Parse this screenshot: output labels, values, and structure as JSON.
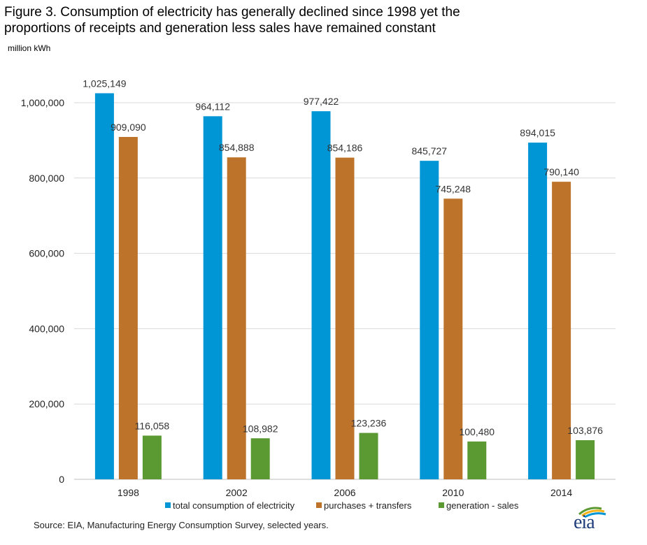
{
  "title_line1": "Figure 3. Consumption of electricity has generally declined since 1998 yet the",
  "title_line2": "proportions of receipts and generation less sales have remained constant",
  "units": "million kWh",
  "source": "Source: EIA, Manufacturing Energy Consumption Survey, selected years.",
  "logo_text": "eia",
  "chart_data": {
    "type": "bar",
    "categories": [
      "1998",
      "2002",
      "2006",
      "2010",
      "2014"
    ],
    "series": [
      {
        "name": "total consumption of electricity",
        "color": "#0096d6",
        "values": [
          1025149,
          964112,
          977422,
          845727,
          894015
        ],
        "labels": [
          "1,025,149",
          "964,112",
          "977,422",
          "845,727",
          "894,015"
        ]
      },
      {
        "name": "purchases + transfers",
        "color": "#be732b",
        "values": [
          909090,
          854888,
          854186,
          745248,
          790140
        ],
        "labels": [
          "909,090",
          "854,888",
          "854,186",
          "745,248",
          "790,140"
        ]
      },
      {
        "name": "generation - sales",
        "color": "#5b9a32",
        "values": [
          116058,
          108982,
          123236,
          100480,
          103876
        ],
        "labels": [
          "116,058",
          "108,982",
          "123,236",
          "100,480",
          "103,876"
        ]
      }
    ],
    "ylim": [
      0,
      1000000
    ],
    "yticks": [
      0,
      200000,
      400000,
      600000,
      800000,
      1000000
    ],
    "ytick_labels": [
      "0",
      "200,000",
      "400,000",
      "600,000",
      "800,000",
      "1,000,000"
    ],
    "grid": true,
    "legend_position": "bottom"
  }
}
